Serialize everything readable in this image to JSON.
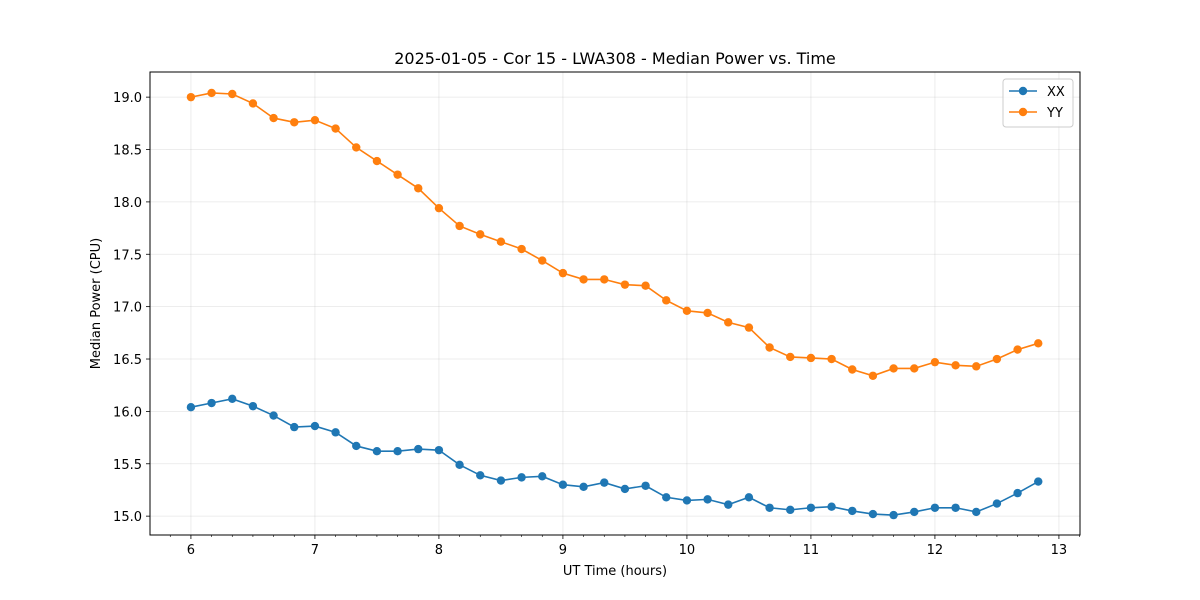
{
  "chart_data": {
    "type": "line",
    "title": "2025-01-05 - Cor 15 - LWA308 - Median Power vs. Time",
    "xlabel": "UT Time (hours)",
    "ylabel": "Median Power (CPU)",
    "xlim": [
      5.67,
      13.17
    ],
    "ylim": [
      14.82,
      19.24
    ],
    "grid": true,
    "legend_position": "top-right",
    "x_ticks": [
      6,
      7,
      8,
      9,
      10,
      11,
      12,
      13
    ],
    "x_tick_labels": [
      "6",
      "7",
      "8",
      "9",
      "10",
      "11",
      "12",
      "13"
    ],
    "y_ticks": [
      15.0,
      15.5,
      16.0,
      16.5,
      17.0,
      17.5,
      18.0,
      18.5,
      19.0
    ],
    "y_tick_labels": [
      "15.0",
      "15.5",
      "16.0",
      "16.5",
      "17.0",
      "17.5",
      "18.0",
      "18.5",
      "19.0"
    ],
    "x": [
      6.0,
      6.1667,
      6.3333,
      6.5,
      6.6667,
      6.8333,
      7.0,
      7.1667,
      7.3333,
      7.5,
      7.6667,
      7.8333,
      8.0,
      8.1667,
      8.3333,
      8.5,
      8.6667,
      8.8333,
      9.0,
      9.1667,
      9.3333,
      9.5,
      9.6667,
      9.8333,
      10.0,
      10.1667,
      10.3333,
      10.5,
      10.6667,
      10.8333,
      11.0,
      11.1667,
      11.3333,
      11.5,
      11.6667,
      11.8333,
      12.0,
      12.1667,
      12.3333,
      12.5,
      12.6667,
      12.8333
    ],
    "series": [
      {
        "name": "XX",
        "color": "#1f77b4",
        "values": [
          16.04,
          16.08,
          16.12,
          16.05,
          15.96,
          15.85,
          15.86,
          15.8,
          15.67,
          15.62,
          15.62,
          15.64,
          15.63,
          15.49,
          15.39,
          15.34,
          15.37,
          15.38,
          15.3,
          15.28,
          15.32,
          15.26,
          15.29,
          15.18,
          15.15,
          15.16,
          15.11,
          15.18,
          15.08,
          15.06,
          15.08,
          15.09,
          15.05,
          15.02,
          15.01,
          15.04,
          15.08,
          15.08,
          15.04,
          15.12,
          15.22,
          15.33
        ]
      },
      {
        "name": "YY",
        "color": "#ff7f0e",
        "values": [
          19.0,
          19.04,
          19.03,
          18.94,
          18.8,
          18.76,
          18.78,
          18.7,
          18.52,
          18.39,
          18.26,
          18.13,
          17.94,
          17.77,
          17.69,
          17.62,
          17.55,
          17.44,
          17.32,
          17.26,
          17.26,
          17.21,
          17.2,
          17.06,
          16.96,
          16.94,
          16.85,
          16.8,
          16.61,
          16.52,
          16.51,
          16.5,
          16.4,
          16.34,
          16.41,
          16.41,
          16.47,
          16.44,
          16.43,
          16.5,
          16.59,
          16.65
        ]
      }
    ]
  }
}
